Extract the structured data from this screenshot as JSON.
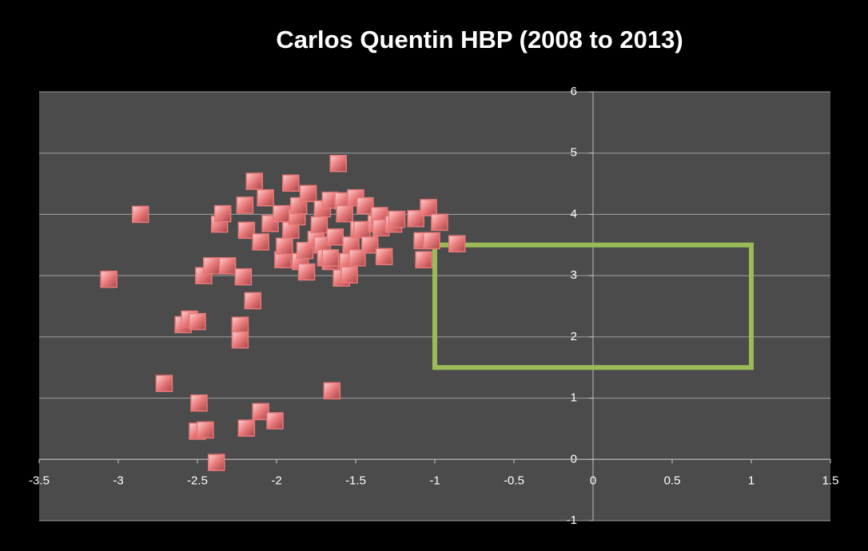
{
  "chart_data": {
    "type": "scatter",
    "title": "Carlos Quentin HBP (2008 to 2013)",
    "xlim": [
      -3.5,
      1.5
    ],
    "xticks": [
      -3.5,
      -3,
      -2.5,
      -2,
      -1.5,
      -1,
      -0.5,
      0,
      0.5,
      1,
      1.5
    ],
    "ylim": [
      -1,
      6
    ],
    "yticks": [
      -1,
      0,
      1,
      2,
      3,
      4,
      5,
      6
    ],
    "grid": true,
    "shapes": [
      {
        "x0": -1,
        "x1": 1,
        "y0": 1.5,
        "y1": 3.5,
        "color": "#9bbb59"
      }
    ],
    "series": [
      {
        "color": "#e8797a",
        "x": [
          -3.06,
          -2.86,
          -2.71,
          -2.59,
          -2.55,
          -2.5,
          -2.49,
          -2.5,
          -2.45,
          -2.46,
          -2.41,
          -2.36,
          -2.34,
          -2.38,
          -2.31,
          -2.23,
          -2.23,
          -2.21,
          -2.2,
          -2.19,
          -2.19,
          -2.15,
          -2.14,
          -2.1,
          -2.1,
          -2.07,
          -2.04,
          -2.01,
          -1.97,
          -1.96,
          -1.95,
          -1.91,
          -1.91,
          -1.87,
          -1.86,
          -1.85,
          -1.82,
          -1.81,
          -1.8,
          -1.75,
          -1.73,
          -1.71,
          -1.71,
          -1.69,
          -1.66,
          -1.66,
          -1.66,
          -1.65,
          -1.63,
          -1.61,
          -1.59,
          -1.58,
          -1.57,
          -1.55,
          -1.54,
          -1.53,
          -1.5,
          -1.49,
          -1.48,
          -1.46,
          -1.44,
          -1.41,
          -1.37,
          -1.35,
          -1.34,
          -1.32,
          -1.26,
          -1.24,
          -1.12,
          -1.08,
          -1.07,
          -1.04,
          -1.02,
          -0.97,
          -0.86
        ],
        "values": [
          2.94,
          4.0,
          1.24,
          2.2,
          2.29,
          2.25,
          0.92,
          0.46,
          0.48,
          3.0,
          3.16,
          3.84,
          4.01,
          -0.05,
          3.16,
          2.19,
          1.95,
          2.98,
          4.15,
          3.74,
          0.51,
          2.59,
          4.54,
          0.78,
          3.55,
          4.27,
          3.85,
          0.63,
          4.01,
          3.26,
          3.48,
          4.51,
          3.74,
          3.96,
          4.14,
          3.23,
          3.41,
          3.06,
          4.34,
          3.59,
          3.83,
          4.09,
          3.5,
          3.29,
          3.23,
          4.23,
          3.29,
          1.12,
          3.63,
          4.83,
          2.96,
          4.22,
          4.01,
          3.23,
          3.01,
          3.5,
          4.27,
          3.29,
          3.75,
          3.75,
          4.14,
          3.5,
          3.85,
          3.98,
          3.78,
          3.31,
          3.84,
          3.92,
          3.93,
          3.57,
          3.26,
          4.11,
          3.57,
          3.87,
          3.52
        ]
      }
    ]
  }
}
